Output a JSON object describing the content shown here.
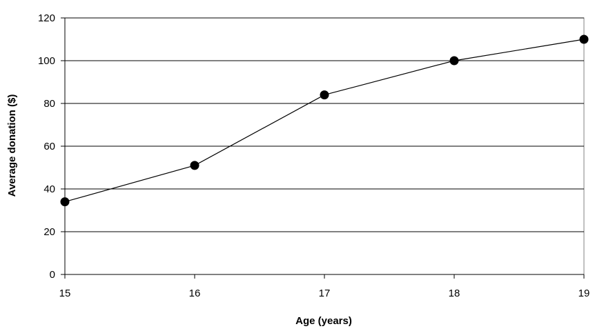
{
  "chart_data": {
    "type": "line",
    "title": "",
    "xlabel": "Age (years)",
    "ylabel": "Average donation ($)",
    "x": [
      15,
      16,
      17,
      18,
      19
    ],
    "xticks": [
      "15",
      "16",
      "17",
      "18",
      "19"
    ],
    "xlim": [
      15,
      19
    ],
    "yticks": [
      "0",
      "20",
      "40",
      "60",
      "80",
      "100",
      "120"
    ],
    "ylim": [
      0,
      120
    ],
    "grid": true,
    "legend": "none",
    "series": [
      {
        "values": [
          34,
          51,
          84,
          100,
          110
        ]
      }
    ],
    "colors": {
      "line": "#000000",
      "marker": "#000000",
      "grid": "#000000",
      "plot_border": "#808080"
    }
  }
}
